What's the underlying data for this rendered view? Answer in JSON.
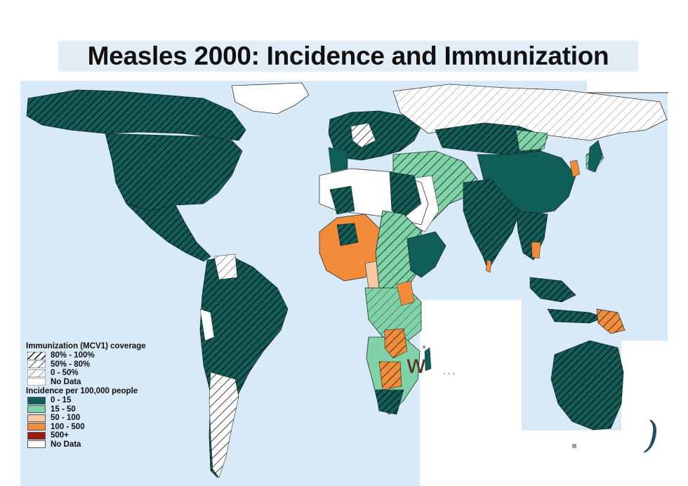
{
  "title": "Measles 2000: Incidence and Immunization",
  "legend": {
    "immunization_heading": "Immunization (MCV1) coverage",
    "immunization_items": [
      {
        "label": "80% - 100%",
        "pattern": "dense-hatch"
      },
      {
        "label": "50% - 80%",
        "pattern": "medium-hatch"
      },
      {
        "label": "0 - 50%",
        "pattern": "sparse-hatch"
      },
      {
        "label": "No Data",
        "pattern": "none"
      }
    ],
    "incidence_heading": "Incidence per 100,000 people",
    "incidence_items": [
      {
        "label": "0 - 15",
        "color": "#0f5e58"
      },
      {
        "label": "15 - 50",
        "color": "#7fd3a6"
      },
      {
        "label": "50 - 100",
        "color": "#f7c8a2"
      },
      {
        "label": "100 - 500",
        "color": "#f28c3a"
      },
      {
        "label": "500+",
        "color": "#a01a12"
      },
      {
        "label": "No Data",
        "color": "#ffffff"
      }
    ]
  },
  "colors": {
    "ocean": "#d8e9f7",
    "border": "#2a3a3a"
  },
  "overlay_glyphs": {
    "w": "w",
    "dots": "...",
    "paren": ")"
  }
}
